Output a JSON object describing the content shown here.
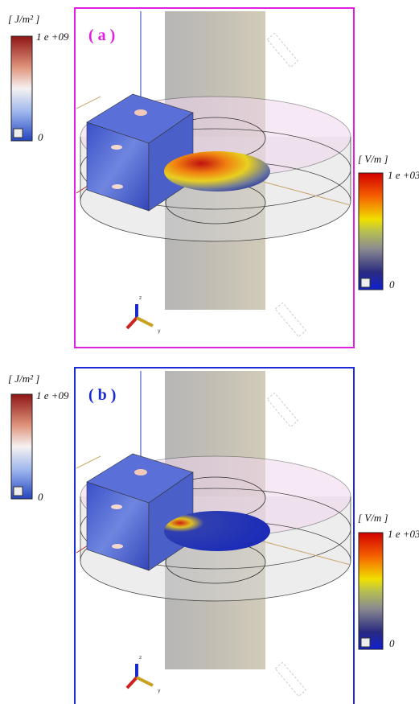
{
  "panels": [
    {
      "label": "( a )",
      "energy_legend": {
        "unit": "[ J/m² ]",
        "max": "1 e +09",
        "min": "0"
      },
      "field_legend": {
        "unit": "[ V/m ]",
        "max": "1 e +03",
        "min": "0"
      },
      "axis_labels": [
        "z",
        "y"
      ]
    },
    {
      "label": "( b )",
      "energy_legend": {
        "unit": "[ J/m² ]",
        "max": "1 e +09",
        "min": "0"
      },
      "field_legend": {
        "unit": "[ V/m ]",
        "max": "1 e +03",
        "min": "0"
      },
      "axis_labels": [
        "z",
        "y"
      ]
    }
  ]
}
